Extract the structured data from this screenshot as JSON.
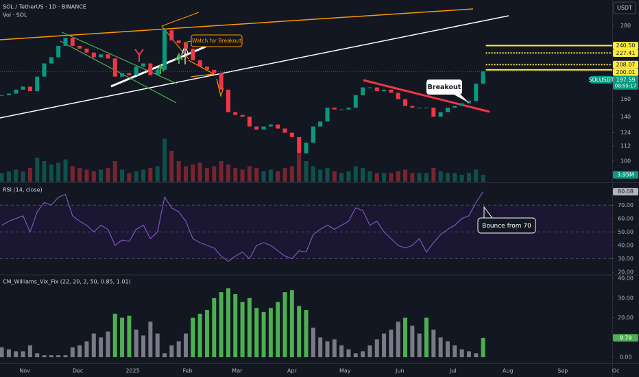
{
  "chart_data": [
    {
      "type": "candlestick",
      "title": "SOL / TetherUS · 1D · BINANCE",
      "subtitle": "Vol · SOL",
      "currency": "USDT",
      "x": [
        1,
        5,
        9,
        13,
        17,
        21,
        25,
        29,
        33,
        37,
        41,
        45,
        49,
        53,
        57,
        61,
        65,
        69,
        73,
        77,
        81,
        85,
        89,
        93,
        97,
        101,
        105,
        109,
        113,
        117,
        121,
        125,
        129,
        133,
        137,
        141,
        145,
        149,
        153,
        157,
        161,
        165,
        169,
        173,
        177,
        181,
        185,
        189,
        193,
        197,
        201,
        205,
        209,
        213,
        217,
        221,
        225,
        229,
        233,
        237,
        241,
        245,
        249,
        253,
        257,
        261,
        265,
        269,
        273
      ],
      "values": [
        165,
        167,
        172,
        176,
        170,
        190,
        210,
        220,
        240,
        255,
        240,
        235,
        228,
        220,
        225,
        218,
        190,
        195,
        192,
        205,
        210,
        192,
        200,
        270,
        250,
        245,
        235,
        215,
        205,
        200,
        195,
        172,
        145,
        142,
        140,
        130,
        127,
        130,
        132,
        128,
        124,
        120,
        106,
        115,
        130,
        135,
        150,
        148,
        148,
        150,
        165,
        175,
        175,
        170,
        172,
        168,
        160,
        152,
        150,
        150,
        150,
        140,
        145,
        150,
        152,
        155,
        158,
        180,
        197.59
      ],
      "up_color": "#089981",
      "down_color": "#f23645",
      "log_scale": true,
      "ylim": [
        85.5,
        340
      ],
      "yticks": [
        100,
        112,
        124,
        140,
        160,
        180,
        280
      ],
      "xlim": [
        0,
        346
      ],
      "xticks": [
        {
          "value": 14,
          "label": "Nov"
        },
        {
          "value": 44,
          "label": "Dec"
        },
        {
          "value": 75,
          "label": "2025"
        },
        {
          "value": 106,
          "label": "Feb"
        },
        {
          "value": 134,
          "label": "Mar"
        },
        {
          "value": 165,
          "label": "Apr"
        },
        {
          "value": 195,
          "label": "May"
        },
        {
          "value": 226,
          "label": "Jun"
        },
        {
          "value": 256,
          "label": "Jul"
        },
        {
          "value": 287,
          "label": "Aug"
        },
        {
          "value": 318,
          "label": "Sep"
        },
        {
          "value": 348,
          "label": "Oc"
        }
      ],
      "levels": [
        {
          "value": 240.5,
          "label": "240.50",
          "style": "solid"
        },
        {
          "value": 227.41,
          "label": "227.41",
          "style": "dotted"
        },
        {
          "value": 208.07,
          "label": "208.07",
          "style": "dotted"
        },
        {
          "value": 200.01,
          "label": "200.01",
          "style": "solid"
        }
      ],
      "level_color": "#ffeb3b",
      "symbol": "SOLUSDT",
      "countdown": "08:55:17",
      "volume": {
        "values": [
          5,
          6,
          7,
          6,
          8,
          14,
          12,
          10,
          11,
          13,
          9,
          8,
          7,
          6,
          7,
          8,
          12,
          7,
          5,
          6,
          7,
          8,
          9,
          25,
          18,
          12,
          9,
          10,
          11,
          8,
          9,
          12,
          10,
          8,
          7,
          9,
          8,
          6,
          7,
          6,
          8,
          9,
          16,
          12,
          9,
          7,
          8,
          6,
          5,
          6,
          9,
          8,
          6,
          5,
          5,
          5,
          6,
          7,
          5,
          5,
          5,
          8,
          6,
          5,
          5,
          4,
          5,
          7,
          3.95
        ],
        "ylim": [
          0,
          40
        ],
        "last_label": "3.95M"
      },
      "annotations": [
        "Watch for Breakout",
        "Breakout"
      ]
    },
    {
      "type": "line",
      "title": "RSI (14, close)",
      "color": "#7e57c2",
      "x": [
        1,
        5,
        9,
        13,
        17,
        21,
        25,
        29,
        33,
        37,
        41,
        45,
        49,
        53,
        57,
        61,
        65,
        69,
        73,
        77,
        81,
        85,
        89,
        93,
        97,
        101,
        105,
        109,
        113,
        117,
        121,
        125,
        129,
        133,
        137,
        141,
        145,
        149,
        153,
        157,
        161,
        165,
        169,
        173,
        177,
        181,
        185,
        189,
        193,
        197,
        201,
        205,
        209,
        213,
        217,
        221,
        225,
        229,
        233,
        237,
        241,
        245,
        249,
        253,
        257,
        261,
        265,
        269,
        273
      ],
      "values": [
        55,
        58,
        60,
        62,
        50,
        65,
        72,
        70,
        76,
        78,
        62,
        58,
        55,
        50,
        55,
        52,
        40,
        44,
        43,
        52,
        55,
        45,
        50,
        76,
        68,
        65,
        58,
        45,
        42,
        40,
        38,
        32,
        28,
        32,
        35,
        30,
        40,
        42,
        40,
        36,
        32,
        30,
        36,
        35,
        48,
        52,
        55,
        52,
        55,
        58,
        68,
        66,
        55,
        58,
        50,
        45,
        40,
        38,
        40,
        45,
        35,
        42,
        48,
        52,
        55,
        60,
        62,
        72,
        80.08
      ],
      "ylim": [
        18.5,
        86
      ],
      "yticks": [
        {
          "value": 20,
          "label": "20.00"
        },
        {
          "value": 30,
          "label": "30.00"
        },
        {
          "value": 40,
          "label": "40.00"
        },
        {
          "value": 50,
          "label": "50.00"
        },
        {
          "value": 60,
          "label": "60.00"
        },
        {
          "value": 70,
          "label": "70.00"
        }
      ],
      "levels": [
        70,
        50,
        30
      ],
      "band": [
        30,
        70
      ],
      "annotations": [
        "Bounce from 70"
      ]
    },
    {
      "type": "column",
      "title": "CM_Williams_Vix_Fix (22, 20, 2, 50, 0.85, 1.01)",
      "x": [
        1,
        5,
        9,
        13,
        17,
        21,
        25,
        29,
        33,
        37,
        41,
        45,
        49,
        53,
        57,
        61,
        65,
        69,
        73,
        77,
        81,
        85,
        89,
        93,
        97,
        101,
        105,
        109,
        113,
        117,
        121,
        125,
        129,
        133,
        137,
        141,
        145,
        149,
        153,
        157,
        161,
        165,
        169,
        173,
        177,
        181,
        185,
        189,
        193,
        197,
        201,
        205,
        209,
        213,
        217,
        221,
        225,
        229,
        233,
        237,
        241,
        245,
        249,
        253,
        257,
        261,
        265,
        269,
        273
      ],
      "values": [
        5,
        4,
        3,
        3,
        6,
        2,
        1,
        1,
        1,
        1,
        5,
        6,
        8,
        12,
        10,
        13,
        22,
        20,
        21,
        14,
        11,
        18,
        12,
        2,
        6,
        8,
        12,
        20,
        22,
        24,
        30,
        33,
        35,
        32,
        28,
        30,
        25,
        23,
        25,
        28,
        33,
        34,
        26,
        24,
        15,
        10,
        8,
        9,
        6,
        4,
        2,
        3,
        6,
        9,
        12,
        14,
        18,
        20,
        16,
        12,
        20,
        14,
        10,
        8,
        6,
        4,
        3,
        2,
        9.79
      ],
      "colors": [
        "#787b86",
        "#787b86",
        "#787b86",
        "#787b86",
        "#787b86",
        "#787b86",
        "#787b86",
        "#787b86",
        "#787b86",
        "#787b86",
        "#787b86",
        "#787b86",
        "#787b86",
        "#787b86",
        "#787b86",
        "#787b86",
        "#4caf50",
        "#4caf50",
        "#4caf50",
        "#787b86",
        "#787b86",
        "#787b86",
        "#787b86",
        "#787b86",
        "#787b86",
        "#787b86",
        "#787b86",
        "#4caf50",
        "#4caf50",
        "#4caf50",
        "#4caf50",
        "#4caf50",
        "#4caf50",
        "#4caf50",
        "#4caf50",
        "#4caf50",
        "#4caf50",
        "#4caf50",
        "#4caf50",
        "#4caf50",
        "#4caf50",
        "#4caf50",
        "#4caf50",
        "#4caf50",
        "#787b86",
        "#787b86",
        "#787b86",
        "#787b86",
        "#787b86",
        "#787b86",
        "#787b86",
        "#787b86",
        "#787b86",
        "#787b86",
        "#787b86",
        "#787b86",
        "#787b86",
        "#4caf50",
        "#787b86",
        "#787b86",
        "#4caf50",
        "#787b86",
        "#787b86",
        "#787b86",
        "#787b86",
        "#787b86",
        "#787b86",
        "#787b86",
        "#4caf50"
      ],
      "ylim": [
        -3.1,
        41.4
      ],
      "yticks": [
        {
          "value": 0,
          "label": "0.00"
        },
        {
          "value": 10,
          "label": "10.00"
        },
        {
          "value": 20,
          "label": "20.00"
        },
        {
          "value": 30,
          "label": "30.00"
        },
        {
          "value": 40,
          "label": "40.00"
        }
      ]
    }
  ]
}
